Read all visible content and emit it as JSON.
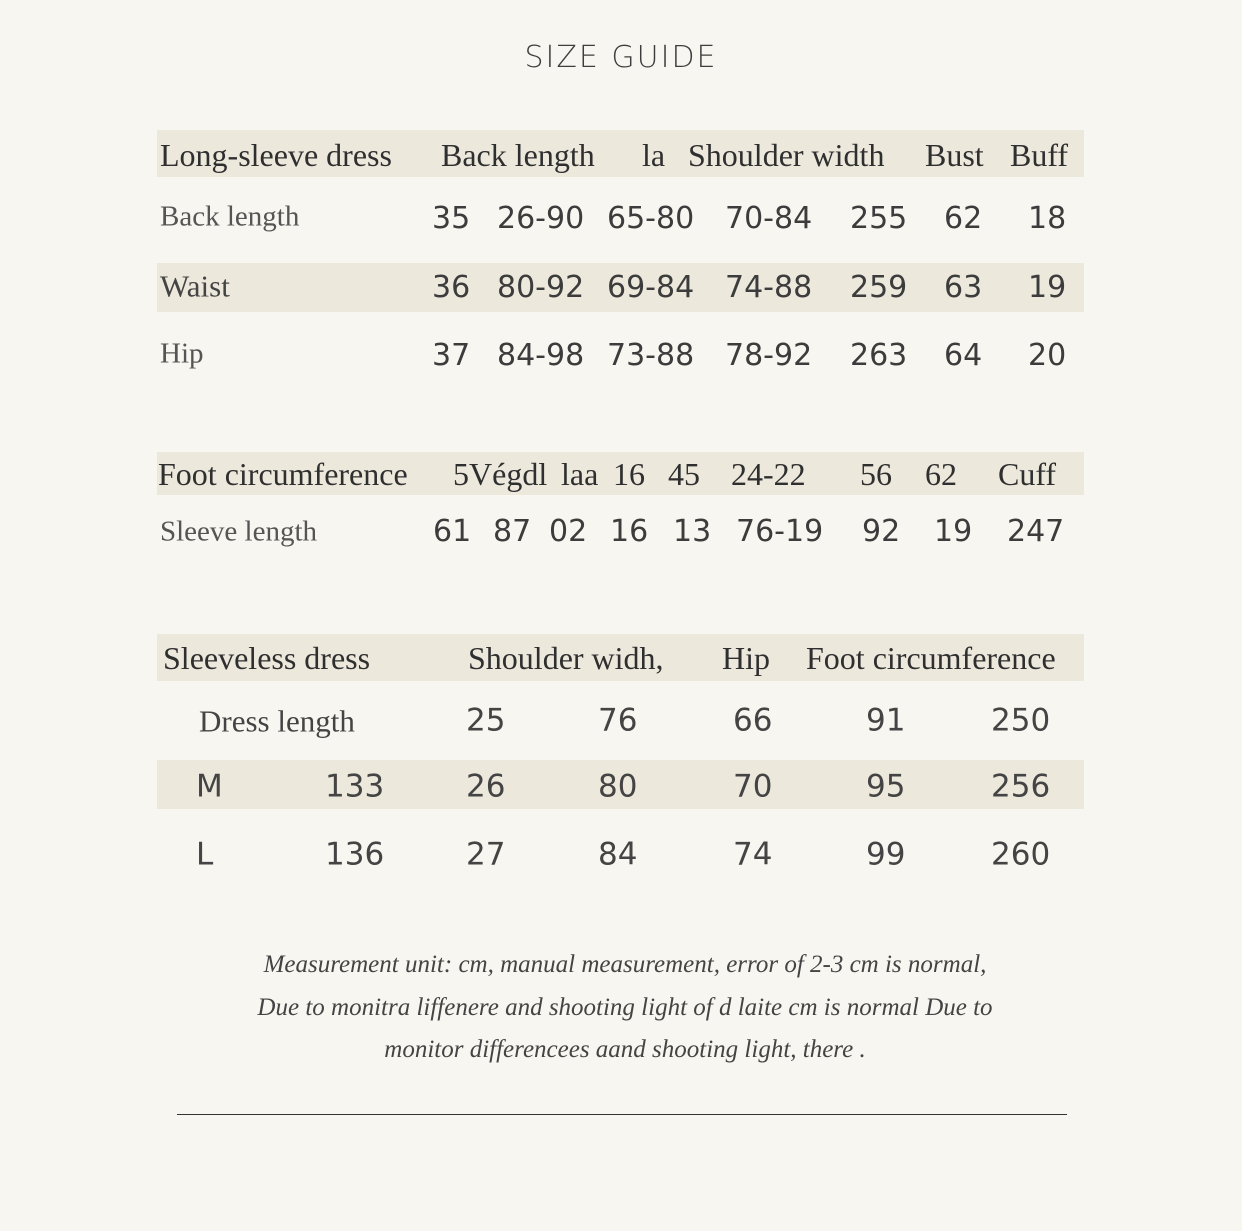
{
  "title": "SIZE GUIDE",
  "table1": {
    "header": [
      "Long-sleeve dress",
      "Back length",
      "la",
      "Shoulder width",
      "Bust",
      "Buff"
    ],
    "rows": [
      {
        "label": "Back length",
        "values": [
          "35",
          "26-90",
          "65-80",
          "70-84",
          "255",
          "62",
          "18"
        ]
      },
      {
        "label": "Waist",
        "values": [
          "36",
          "80-92",
          "69-84",
          "74-88",
          "259",
          "63",
          "19"
        ]
      },
      {
        "label": "Hip",
        "values": [
          "37",
          "84-98",
          "73-88",
          "78-92",
          "263",
          "64",
          "20"
        ]
      }
    ]
  },
  "table2": {
    "header": [
      "Foot circumference",
      "5Végdl",
      "laa",
      "16",
      "45",
      "24-22",
      "56",
      "62",
      "Cuff"
    ],
    "rows": [
      {
        "label": "Sleeve length",
        "values": [
          "61",
          "87",
          "02",
          "16",
          "13",
          "76-19",
          "92",
          "19",
          "247"
        ]
      }
    ]
  },
  "table3": {
    "header": [
      "Sleeveless dress",
      "Shoulder widh,",
      "Hip",
      "Foot circumference"
    ],
    "rows": [
      {
        "label": "Dress length",
        "values": [
          "",
          "25",
          "76",
          "66",
          "91",
          "250"
        ]
      },
      {
        "label": "M",
        "values": [
          "133",
          "26",
          "80",
          "70",
          "95",
          "256"
        ]
      },
      {
        "label": "L",
        "values": [
          "136",
          "27",
          "84",
          "74",
          "99",
          "260"
        ]
      }
    ]
  },
  "notes": [
    "Measurement unit: cm, manual measurement, error of 2-3 cm is normal,",
    "Due to monitra liffenere and shooting light of d laite cm is normal Due to",
    "monitor differencees aand shooting light, there ."
  ]
}
